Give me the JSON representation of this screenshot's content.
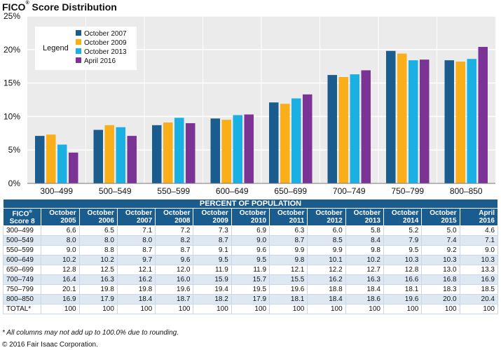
{
  "title_main": "FICO",
  "title_mark": "®",
  "title_rest": " Score Distribution",
  "chart_data": {
    "type": "bar",
    "title": "FICO® Score Distribution",
    "categories": [
      "300–499",
      "500–549",
      "550–599",
      "600–649",
      "650–699",
      "700–749",
      "750–799",
      "800–850"
    ],
    "series": [
      {
        "name": "October 2007",
        "color": "#1b5c8e",
        "values": [
          7.1,
          8.0,
          8.7,
          9.7,
          12.1,
          16.2,
          19.8,
          18.4
        ]
      },
      {
        "name": "October 2009",
        "color": "#f9ae1a",
        "values": [
          7.3,
          8.7,
          9.1,
          9.5,
          11.9,
          15.9,
          19.4,
          18.2
        ]
      },
      {
        "name": "October 2013",
        "color": "#1ab0e4",
        "values": [
          5.8,
          8.4,
          9.8,
          10.2,
          12.7,
          16.3,
          18.4,
          18.6
        ]
      },
      {
        "name": "April 2016",
        "color": "#7c3396",
        "values": [
          4.6,
          7.1,
          9.0,
          10.3,
          13.3,
          16.9,
          18.5,
          20.4
        ]
      }
    ],
    "ylim": [
      0,
      25
    ],
    "yticks": [
      "0%",
      "5%",
      "10%",
      "15%",
      "20%",
      "25%"
    ],
    "legend_title": "Legend",
    "grid": true,
    "legend_position": "top-left"
  },
  "table": {
    "caption": "PERCENT OF POPULATION",
    "first_col_header_top": "FICO",
    "first_col_header_mark": "®",
    "first_col_header_bottom": "Score 8",
    "columns": [
      {
        "top": "October",
        "bottom": "2005"
      },
      {
        "top": "October",
        "bottom": "2006"
      },
      {
        "top": "October",
        "bottom": "2007"
      },
      {
        "top": "October",
        "bottom": "2008"
      },
      {
        "top": "October",
        "bottom": "2009"
      },
      {
        "top": "October",
        "bottom": "2010"
      },
      {
        "top": "October",
        "bottom": "2011"
      },
      {
        "top": "October",
        "bottom": "2012"
      },
      {
        "top": "October",
        "bottom": "2013"
      },
      {
        "top": "October",
        "bottom": "2014"
      },
      {
        "top": "October",
        "bottom": "2015"
      },
      {
        "top": "April",
        "bottom": "2016"
      }
    ],
    "rows": [
      {
        "label": "300–499",
        "values": [
          "6.6",
          "6.5",
          "7.1",
          "7.2",
          "7.3",
          "6.9",
          "6.3",
          "6.0",
          "5.8",
          "5.2",
          "5.0",
          "4.6"
        ]
      },
      {
        "label": "500–549",
        "values": [
          "8.0",
          "8.0",
          "8.0",
          "8.2",
          "8.7",
          "9.0",
          "8.7",
          "8.5",
          "8.4",
          "7.9",
          "7.4",
          "7.1"
        ]
      },
      {
        "label": "550–599",
        "values": [
          "9.0",
          "8.8",
          "8.7",
          "8.7",
          "9.1",
          "9.6",
          "9.9",
          "9.9",
          "9.8",
          "9.5",
          "9.2",
          "9.0"
        ]
      },
      {
        "label": "600–649",
        "values": [
          "10.2",
          "10.2",
          "9.7",
          "9.6",
          "9.5",
          "9.5",
          "9.8",
          "10.1",
          "10.2",
          "10.3",
          "10.3",
          "10.3"
        ]
      },
      {
        "label": "650–699",
        "values": [
          "12.8",
          "12.5",
          "12.1",
          "12.0",
          "11.9",
          "11.9",
          "12.1",
          "12.2",
          "12.7",
          "12.8",
          "13.0",
          "13.3"
        ]
      },
      {
        "label": "700–749",
        "values": [
          "16.4",
          "16.3",
          "16.2",
          "16.0",
          "15.9",
          "15.7",
          "15.5",
          "16.2",
          "16.3",
          "16.6",
          "16.8",
          "16.9"
        ]
      },
      {
        "label": "750–799",
        "values": [
          "20.1",
          "19.8",
          "19.8",
          "19.6",
          "19.4",
          "19.5",
          "19.6",
          "18.8",
          "18.4",
          "18.1",
          "18.3",
          "18.5"
        ]
      },
      {
        "label": "800–850",
        "values": [
          "16.9",
          "17.9",
          "18.4",
          "18.7",
          "18.2",
          "17.9",
          "18.1",
          "18.4",
          "18.6",
          "19.6",
          "20.0",
          "20.4"
        ]
      },
      {
        "label": "TOTAL*",
        "values": [
          "100",
          "100",
          "100",
          "100",
          "100",
          "100",
          "100",
          "100",
          "100",
          "100",
          "100",
          "100"
        ]
      }
    ]
  },
  "footnote": "* All columns may not add up to 100.0% due to rounding.",
  "copyright": "© 2016 Fair Isaac Corporation."
}
